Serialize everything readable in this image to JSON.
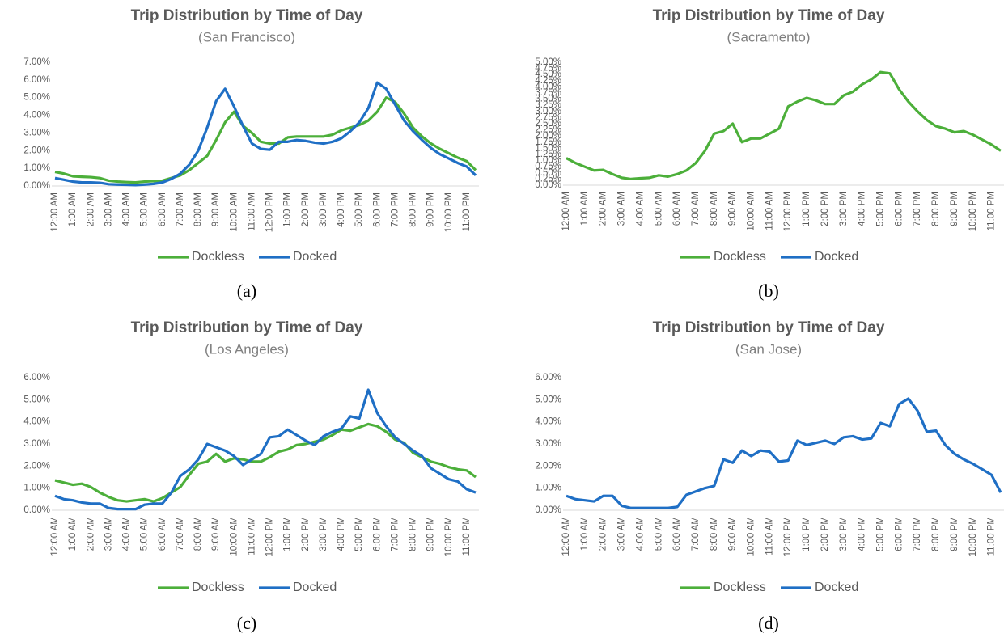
{
  "chart_data": [
    {
      "type": "line",
      "title": "Trip Distribution by Time of Day",
      "subtitle": "(San Francisco)",
      "caption": "(a)",
      "categories": [
        "12:00 AM",
        null,
        "1:00 AM",
        null,
        "2:00 AM",
        null,
        "3:00 AM",
        null,
        "4:00 AM",
        null,
        "5:00 AM",
        null,
        "6:00 AM",
        null,
        "7:00 AM",
        null,
        "8:00 AM",
        null,
        "9:00 AM",
        null,
        "10:00 AM",
        null,
        "11:00 AM",
        null,
        "12:00 PM",
        null,
        "1:00 PM",
        null,
        "2:00 PM",
        null,
        "3:00 PM",
        null,
        "4:00 PM",
        null,
        "5:00 PM",
        null,
        "6:00 PM",
        null,
        "7:00 PM",
        null,
        "8:00 PM",
        null,
        "9:00 PM",
        null,
        "10:00 PM",
        null,
        "11:00 PM",
        null
      ],
      "ylim": [
        0,
        7
      ],
      "yticks": [
        {
          "value": 0,
          "label": "0.00%"
        },
        {
          "value": 1,
          "label": "1.00%"
        },
        {
          "value": 2,
          "label": "2.00%"
        },
        {
          "value": 3,
          "label": "3.00%"
        },
        {
          "value": 4,
          "label": "4.00%"
        },
        {
          "value": 5,
          "label": "5.00%"
        },
        {
          "value": 6,
          "label": "6.00%"
        },
        {
          "value": 7,
          "label": "7.00%"
        }
      ],
      "series": [
        {
          "name": "Dockless",
          "color": "#4caf3a",
          "values": [
            0.8,
            0.7,
            0.55,
            0.52,
            0.5,
            0.45,
            0.3,
            0.25,
            0.22,
            0.2,
            0.25,
            0.28,
            0.3,
            0.45,
            0.6,
            0.9,
            1.3,
            1.7,
            2.6,
            3.6,
            4.2,
            3.4,
            3.0,
            2.5,
            2.4,
            2.4,
            2.75,
            2.8,
            2.8,
            2.8,
            2.8,
            2.9,
            3.15,
            3.3,
            3.45,
            3.7,
            4.2,
            5.0,
            4.75,
            4.1,
            3.3,
            2.8,
            2.4,
            2.1,
            1.85,
            1.6,
            1.4,
            0.9
          ]
        },
        {
          "name": "Docked",
          "color": "#1f6fc5",
          "values": [
            0.45,
            0.35,
            0.25,
            0.2,
            0.2,
            0.18,
            0.1,
            0.08,
            0.07,
            0.05,
            0.08,
            0.12,
            0.2,
            0.4,
            0.7,
            1.2,
            2.0,
            3.3,
            4.8,
            5.5,
            4.5,
            3.4,
            2.4,
            2.1,
            2.05,
            2.5,
            2.5,
            2.6,
            2.55,
            2.45,
            2.4,
            2.5,
            2.7,
            3.1,
            3.6,
            4.4,
            5.85,
            5.5,
            4.6,
            3.7,
            3.1,
            2.6,
            2.15,
            1.8,
            1.55,
            1.3,
            1.1,
            0.6
          ]
        }
      ]
    },
    {
      "type": "line",
      "title": "Trip Distribution by Time of Day",
      "subtitle": "(Sacramento)",
      "caption": "(b)",
      "categories": [
        "12:00 AM",
        null,
        "1:00 AM",
        null,
        "2:00 AM",
        null,
        "3:00 AM",
        null,
        "4:00 AM",
        null,
        "5:00 AM",
        null,
        "6:00 AM",
        null,
        "7:00 AM",
        null,
        "8:00 AM",
        null,
        "9:00 AM",
        null,
        "10:00 AM",
        null,
        "11:00 AM",
        null,
        "12:00 PM",
        null,
        "1:00 PM",
        null,
        "2:00 PM",
        null,
        "3:00 PM",
        null,
        "4:00 PM",
        null,
        "5:00 PM",
        null,
        "6:00 PM",
        null,
        "7:00 PM",
        null,
        "8:00 PM",
        null,
        "9:00 PM",
        null,
        "10:00 PM",
        null,
        "11:00 PM",
        null
      ],
      "ylim": [
        0,
        5
      ],
      "yticks": [
        {
          "value": 0,
          "label": "0.00%"
        },
        {
          "value": 0.25,
          "label": "0.25%"
        },
        {
          "value": 0.5,
          "label": "0.50%"
        },
        {
          "value": 0.75,
          "label": "0.75%"
        },
        {
          "value": 1,
          "label": "1.00%"
        },
        {
          "value": 1.25,
          "label": "1.25%"
        },
        {
          "value": 1.5,
          "label": "1.50%"
        },
        {
          "value": 1.75,
          "label": "1.75%"
        },
        {
          "value": 2,
          "label": "2.00%"
        },
        {
          "value": 2.25,
          "label": "2.25%"
        },
        {
          "value": 2.5,
          "label": "2.50%"
        },
        {
          "value": 2.75,
          "label": "2.75%"
        },
        {
          "value": 3,
          "label": "3.00%"
        },
        {
          "value": 3.25,
          "label": "3.25%"
        },
        {
          "value": 3.5,
          "label": "3.50%"
        },
        {
          "value": 3.75,
          "label": "3.75%"
        },
        {
          "value": 4,
          "label": "4.00%"
        },
        {
          "value": 4.25,
          "label": "4.25%"
        },
        {
          "value": 4.5,
          "label": "4.50%"
        },
        {
          "value": 4.75,
          "label": "4.75%"
        },
        {
          "value": 5,
          "label": "5.00%"
        }
      ],
      "series": [
        {
          "name": "Dockless",
          "color": "#4caf3a",
          "values": [
            1.1,
            0.9,
            0.75,
            0.6,
            0.62,
            0.45,
            0.3,
            0.25,
            0.28,
            0.3,
            0.4,
            0.35,
            0.45,
            0.6,
            0.9,
            1.4,
            2.1,
            2.2,
            2.5,
            1.75,
            1.9,
            1.9,
            2.1,
            2.3,
            3.2,
            3.4,
            3.55,
            3.45,
            3.3,
            3.3,
            3.65,
            3.8,
            4.1,
            4.3,
            4.6,
            4.55,
            3.9,
            3.4,
            3.0,
            2.65,
            2.4,
            2.3,
            2.15,
            2.2,
            2.05,
            1.85,
            1.65,
            1.4
          ]
        },
        {
          "name": "Docked",
          "color": "#1f6fc5",
          "values": [
            null,
            null,
            null,
            null,
            null,
            null,
            null,
            null,
            null,
            null,
            null,
            null,
            null,
            null,
            null,
            null,
            null,
            null,
            null,
            null,
            null,
            null,
            null,
            null,
            null,
            null,
            null,
            null,
            null,
            null,
            null,
            null,
            null,
            null,
            null,
            null,
            null,
            null,
            null,
            null,
            null,
            null,
            null,
            null,
            null,
            null,
            null,
            null
          ]
        }
      ]
    },
    {
      "type": "line",
      "title": "Trip Distribution by Time of Day",
      "subtitle": "(Los Angeles)",
      "caption": "(c)",
      "categories": [
        "12:00 AM",
        null,
        "1:00 AM",
        null,
        "2:00 AM",
        null,
        "3:00 AM",
        null,
        "4:00 AM",
        null,
        "5:00 AM",
        null,
        "6:00 AM",
        null,
        "7:00 AM",
        null,
        "8:00 AM",
        null,
        "9:00 AM",
        null,
        "10:00 AM",
        null,
        "11:00 AM",
        null,
        "12:00 PM",
        null,
        "1:00 PM",
        null,
        "2:00 PM",
        null,
        "3:00 PM",
        null,
        "4:00 PM",
        null,
        "5:00 PM",
        null,
        "6:00 PM",
        null,
        "7:00 PM",
        null,
        "8:00 PM",
        null,
        "9:00 PM",
        null,
        "10:00 PM",
        null,
        "11:00 PM",
        null
      ],
      "ylim": [
        0,
        6
      ],
      "yticks": [
        {
          "value": 0,
          "label": "0.00%"
        },
        {
          "value": 1,
          "label": "1.00%"
        },
        {
          "value": 2,
          "label": "2.00%"
        },
        {
          "value": 3,
          "label": "3.00%"
        },
        {
          "value": 4,
          "label": "4.00%"
        },
        {
          "value": 5,
          "label": "5.00%"
        },
        {
          "value": 6,
          "label": "6.00%"
        }
      ],
      "series": [
        {
          "name": "Dockless",
          "color": "#4caf3a",
          "values": [
            1.35,
            1.25,
            1.15,
            1.2,
            1.05,
            0.8,
            0.6,
            0.45,
            0.4,
            0.45,
            0.5,
            0.4,
            0.55,
            0.8,
            1.05,
            1.6,
            2.1,
            2.2,
            2.55,
            2.2,
            2.35,
            2.3,
            2.2,
            2.2,
            2.4,
            2.65,
            2.75,
            2.95,
            3.0,
            3.1,
            3.2,
            3.4,
            3.65,
            3.6,
            3.75,
            3.9,
            3.8,
            3.55,
            3.2,
            3.05,
            2.6,
            2.4,
            2.2,
            2.1,
            1.95,
            1.85,
            1.8,
            1.5
          ]
        },
        {
          "name": "Docked",
          "color": "#1f6fc5",
          "values": [
            0.65,
            0.5,
            0.45,
            0.35,
            0.3,
            0.3,
            0.1,
            0.05,
            0.05,
            0.05,
            0.25,
            0.3,
            0.3,
            0.8,
            1.55,
            1.85,
            2.3,
            3.0,
            2.85,
            2.7,
            2.45,
            2.05,
            2.3,
            2.55,
            3.3,
            3.35,
            3.65,
            3.4,
            3.15,
            2.95,
            3.35,
            3.55,
            3.7,
            4.25,
            4.15,
            5.45,
            4.4,
            3.8,
            3.3,
            3.0,
            2.7,
            2.45,
            1.9,
            1.65,
            1.4,
            1.3,
            0.95,
            0.8
          ]
        }
      ]
    },
    {
      "type": "line",
      "title": "Trip Distribution by Time of Day",
      "subtitle": "(San Jose)",
      "caption": "(d)",
      "categories": [
        "12:00 AM",
        null,
        "1:00 AM",
        null,
        "2:00 AM",
        null,
        "3:00 AM",
        null,
        "4:00 AM",
        null,
        "5:00 AM",
        null,
        "6:00 AM",
        null,
        "7:00 AM",
        null,
        "8:00 AM",
        null,
        "9:00 AM",
        null,
        "10:00 AM",
        null,
        "11:00 AM",
        null,
        "12:00 PM",
        null,
        "1:00 PM",
        null,
        "2:00 PM",
        null,
        "3:00 PM",
        null,
        "4:00 PM",
        null,
        "5:00 PM",
        null,
        "6:00 PM",
        null,
        "7:00 PM",
        null,
        "8:00 PM",
        null,
        "9:00 PM",
        null,
        "10:00 PM",
        null,
        "11:00 PM",
        null
      ],
      "ylim": [
        0,
        6
      ],
      "yticks": [
        {
          "value": 0,
          "label": "0.00%"
        },
        {
          "value": 1,
          "label": "1.00%"
        },
        {
          "value": 2,
          "label": "2.00%"
        },
        {
          "value": 3,
          "label": "3.00%"
        },
        {
          "value": 4,
          "label": "4.00%"
        },
        {
          "value": 5,
          "label": "5.00%"
        },
        {
          "value": 6,
          "label": "6.00%"
        }
      ],
      "series": [
        {
          "name": "Dockless",
          "color": "#4caf3a",
          "values": [
            null,
            null,
            null,
            null,
            null,
            null,
            null,
            null,
            null,
            null,
            null,
            null,
            null,
            null,
            null,
            null,
            null,
            null,
            null,
            null,
            null,
            null,
            null,
            null,
            null,
            null,
            null,
            null,
            null,
            null,
            null,
            null,
            null,
            null,
            null,
            null,
            null,
            null,
            null,
            null,
            null,
            null,
            null,
            null,
            null,
            null,
            null,
            null
          ]
        },
        {
          "name": "Docked",
          "color": "#1f6fc5",
          "values": [
            0.65,
            0.5,
            0.45,
            0.4,
            0.65,
            0.65,
            0.2,
            0.1,
            0.1,
            0.1,
            0.1,
            0.1,
            0.15,
            0.7,
            0.85,
            1.0,
            1.1,
            2.3,
            2.15,
            2.7,
            2.45,
            2.7,
            2.65,
            2.2,
            2.25,
            3.15,
            2.95,
            3.05,
            3.15,
            3.0,
            3.3,
            3.35,
            3.2,
            3.25,
            3.95,
            3.8,
            4.8,
            5.05,
            4.5,
            3.55,
            3.6,
            2.95,
            2.55,
            2.3,
            2.1,
            1.85,
            1.6,
            0.8
          ]
        }
      ]
    }
  ]
}
